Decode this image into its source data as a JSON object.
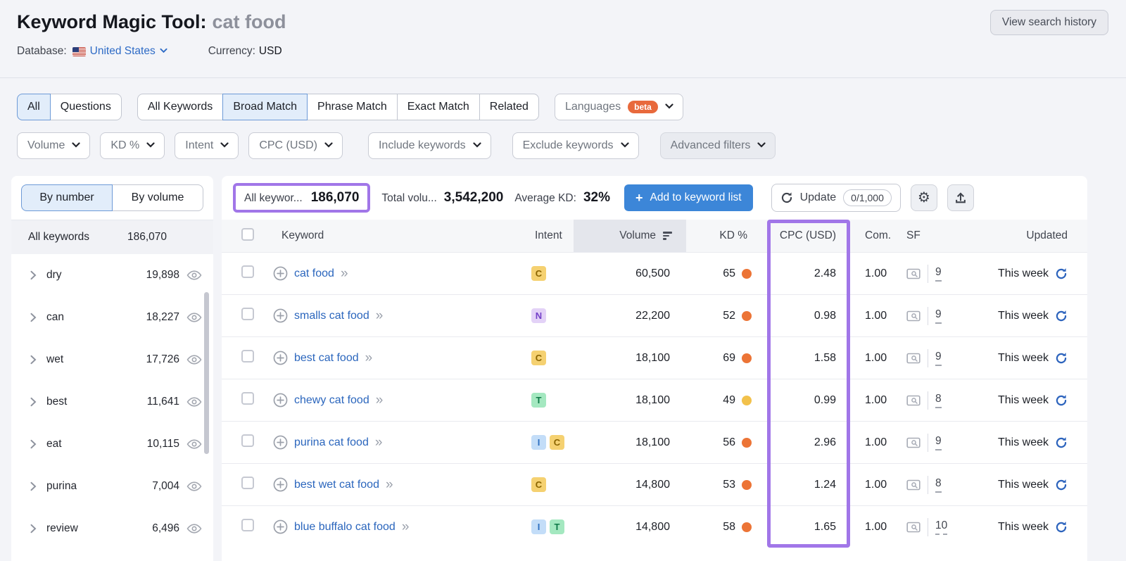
{
  "colors": {
    "highlight": "#a176e8",
    "accent_blue": "#3c86d8",
    "link_blue": "#2b66bd",
    "kd_hard": "#ec7436",
    "kd_medium": "#f2c14b",
    "beta_orange": "#e8693c"
  },
  "header": {
    "title": "Keyword Magic Tool:",
    "query": "cat food",
    "database_label": "Database:",
    "database_value": "United States",
    "currency_label": "Currency:",
    "currency_value": "USD",
    "view_history": "View search history"
  },
  "tabs": {
    "question_group": [
      {
        "label": "All",
        "selected": true
      },
      {
        "label": "Questions",
        "selected": false
      }
    ],
    "match_group": [
      {
        "label": "All Keywords",
        "selected": false
      },
      {
        "label": "Broad Match",
        "selected": true
      },
      {
        "label": "Phrase Match",
        "selected": false
      },
      {
        "label": "Exact Match",
        "selected": false
      },
      {
        "label": "Related",
        "selected": false
      }
    ],
    "languages": {
      "label": "Languages",
      "badge": "beta"
    }
  },
  "filters": {
    "pills": [
      "Volume",
      "KD %",
      "Intent",
      "CPC (USD)",
      "Include keywords",
      "Exclude keywords"
    ],
    "advanced": "Advanced filters"
  },
  "sidebar": {
    "toggle": [
      {
        "label": "By number",
        "selected": true
      },
      {
        "label": "By volume",
        "selected": false
      }
    ],
    "all_label": "All keywords",
    "all_count": "186,070",
    "groups": [
      {
        "label": "dry",
        "count": "19,898"
      },
      {
        "label": "can",
        "count": "18,227"
      },
      {
        "label": "wet",
        "count": "17,726"
      },
      {
        "label": "best",
        "count": "11,641"
      },
      {
        "label": "eat",
        "count": "10,115"
      },
      {
        "label": "purina",
        "count": "7,004"
      },
      {
        "label": "review",
        "count": "6,496"
      }
    ]
  },
  "stats": {
    "all_keywords_label": "All keywor...",
    "all_keywords_value": "186,070",
    "total_volume_label": "Total volu...",
    "total_volume_value": "3,542,200",
    "average_kd_label": "Average KD:",
    "average_kd_value": "32%",
    "add_button": "Add to keyword list",
    "update_button": "Update",
    "update_count": "0/1,000"
  },
  "table": {
    "columns": [
      "Keyword",
      "Intent",
      "Volume",
      "KD %",
      "CPC (USD)",
      "Com.",
      "SF",
      "Updated"
    ],
    "sorted_column": "Volume",
    "rows": [
      {
        "keyword": "cat food",
        "intents": [
          "C"
        ],
        "volume": "60,500",
        "kd": "65",
        "kd_level": "hard",
        "cpc": "2.48",
        "com": "1.00",
        "sf": "9",
        "updated": "This week"
      },
      {
        "keyword": "smalls cat food",
        "intents": [
          "N"
        ],
        "volume": "22,200",
        "kd": "52",
        "kd_level": "hard",
        "cpc": "0.98",
        "com": "1.00",
        "sf": "9",
        "updated": "This week"
      },
      {
        "keyword": "best cat food",
        "intents": [
          "C"
        ],
        "volume": "18,100",
        "kd": "69",
        "kd_level": "hard",
        "cpc": "1.58",
        "com": "1.00",
        "sf": "9",
        "updated": "This week"
      },
      {
        "keyword": "chewy cat food",
        "intents": [
          "T"
        ],
        "volume": "18,100",
        "kd": "49",
        "kd_level": "medium",
        "cpc": "0.99",
        "com": "1.00",
        "sf": "8",
        "updated": "This week"
      },
      {
        "keyword": "purina cat food",
        "intents": [
          "I",
          "C"
        ],
        "volume": "18,100",
        "kd": "56",
        "kd_level": "hard",
        "cpc": "2.96",
        "com": "1.00",
        "sf": "9",
        "updated": "This week"
      },
      {
        "keyword": "best wet cat food",
        "intents": [
          "C"
        ],
        "volume": "14,800",
        "kd": "53",
        "kd_level": "hard",
        "cpc": "1.24",
        "com": "1.00",
        "sf": "8",
        "updated": "This week"
      },
      {
        "keyword": "blue buffalo cat food",
        "intents": [
          "I",
          "T"
        ],
        "volume": "14,800",
        "kd": "58",
        "kd_level": "hard",
        "cpc": "1.65",
        "com": "1.00",
        "sf": "10",
        "updated": "This week"
      }
    ]
  }
}
